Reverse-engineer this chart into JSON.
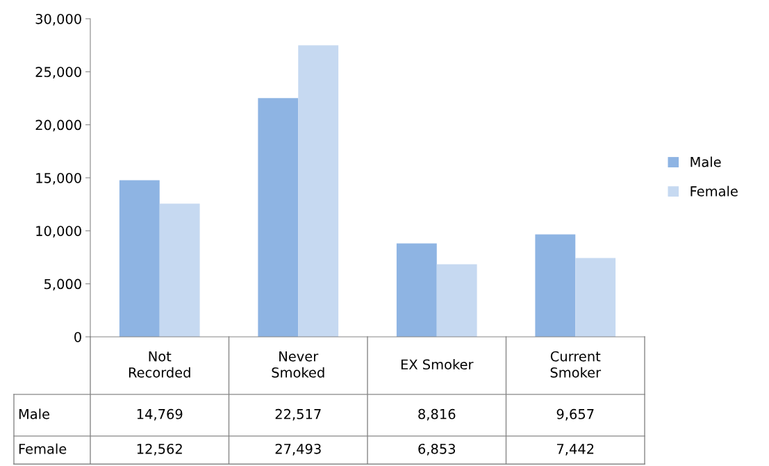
{
  "chart_data": {
    "type": "bar",
    "categories": [
      "Not\nRecorded",
      "Never\nSmoked",
      "EX Smoker",
      "Current\nSmoker"
    ],
    "series": [
      {
        "name": "Male",
        "color": "#8eb4e3",
        "values": [
          14769,
          22517,
          8816,
          9657
        ],
        "value_labels": [
          "14,769",
          "22,517",
          "8,816",
          "9,657"
        ]
      },
      {
        "name": "Female",
        "color": "#c6d9f1",
        "values": [
          12562,
          27493,
          6853,
          7442
        ],
        "value_labels": [
          "12,562",
          "27,493",
          "6,853",
          "7,442"
        ]
      }
    ],
    "ylim": [
      0,
      30000
    ],
    "yticks": [
      {
        "value": 0,
        "label": "0"
      },
      {
        "value": 5000,
        "label": "5,000"
      },
      {
        "value": 10000,
        "label": "10,000"
      },
      {
        "value": 15000,
        "label": "15,000"
      },
      {
        "value": 20000,
        "label": "20,000"
      },
      {
        "value": 25000,
        "label": "25,000"
      },
      {
        "value": 30000,
        "label": "30,000"
      }
    ],
    "legend": "right",
    "grid": false
  }
}
